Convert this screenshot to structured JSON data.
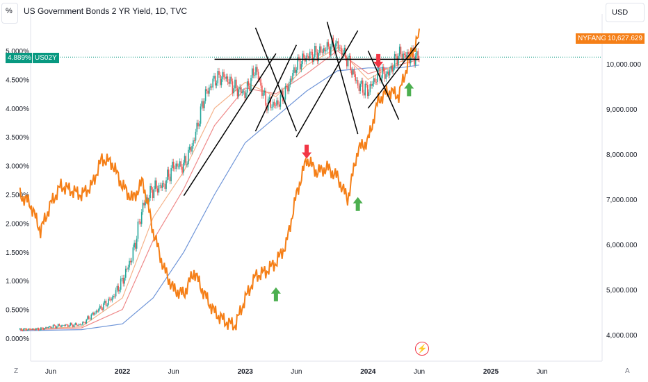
{
  "header": {
    "title": "US Government Bonds 2 YR Yield, 1D, TVC",
    "left_unit": "%",
    "currency": "USD"
  },
  "badges": {
    "yield_value": "4.889%",
    "yield_symbol": "US02Y",
    "index_symbol": "NYFANG",
    "index_value": "10,627.629"
  },
  "corners": {
    "left": "Z",
    "right": "A"
  },
  "colors": {
    "orange": "#f57f17",
    "teal": "#089981",
    "red": "#f23645",
    "green": "#4caf50",
    "blue_ma": "#6f95d8",
    "red_ma": "#ef8a8a",
    "salmon_ma": "#f5b28a",
    "candle_up": "#26a69a",
    "candle_down": "#ef5350",
    "annotation": "#000000"
  },
  "chart_data": {
    "type": "line",
    "title": "US Government Bonds 2 YR Yield, 1D, TVC",
    "x_ticks": [
      "Jun",
      "2022",
      "Jun",
      "2023",
      "Jun",
      "2024",
      "Jun",
      "2025",
      "Jun"
    ],
    "x_tick_dates": [
      "2021-06",
      "2022-01",
      "2022-06",
      "2023-01",
      "2023-06",
      "2024-01",
      "2024-06",
      "2025-01",
      "2025-06"
    ],
    "left_axis": {
      "label": "%",
      "ticks": [
        "5.000%",
        "4.500%",
        "4.000%",
        "3.500%",
        "3.000%",
        "2.500%",
        "2.000%",
        "1.500%",
        "1.000%",
        "0.500%",
        "0.000%"
      ],
      "range": [
        0,
        5
      ]
    },
    "right_axis": {
      "label": "USD",
      "ticks": [
        "10,000.000",
        "9,000.000",
        "8,000.000",
        "7,000.000",
        "6,000.000",
        "5,000.000",
        "4,000.000"
      ],
      "range": [
        4000,
        10000
      ]
    },
    "grid": false,
    "series": [
      {
        "name": "US02Y",
        "axis": "left",
        "style": "candles",
        "points": [
          [
            "2021-03",
            0.15
          ],
          [
            "2021-05",
            0.16
          ],
          [
            "2021-06",
            0.2
          ],
          [
            "2021-07",
            0.22
          ],
          [
            "2021-09",
            0.24
          ],
          [
            "2021-10",
            0.4
          ],
          [
            "2021-11",
            0.55
          ],
          [
            "2021-12",
            0.7
          ],
          [
            "2022-01",
            1.0
          ],
          [
            "2022-02",
            1.45
          ],
          [
            "2022-03",
            2.3
          ],
          [
            "2022-04",
            2.6
          ],
          [
            "2022-05",
            2.65
          ],
          [
            "2022-06",
            3.0
          ],
          [
            "2022-07",
            3.0
          ],
          [
            "2022-08",
            3.45
          ],
          [
            "2022-09",
            4.2
          ],
          [
            "2022-10",
            4.5
          ],
          [
            "2022-11",
            4.55
          ],
          [
            "2022-12",
            4.35
          ],
          [
            "2023-01",
            4.25
          ],
          [
            "2023-02",
            4.7
          ],
          [
            "2023-03",
            4.1
          ],
          [
            "2023-04",
            4.05
          ],
          [
            "2023-05",
            4.3
          ],
          [
            "2023-06",
            4.75
          ],
          [
            "2023-07",
            4.9
          ],
          [
            "2023-08",
            4.95
          ],
          [
            "2023-09",
            5.05
          ],
          [
            "2023-10",
            5.1
          ],
          [
            "2023-11",
            4.85
          ],
          [
            "2023-12",
            4.4
          ],
          [
            "2024-01",
            4.3
          ],
          [
            "2024-02",
            4.6
          ],
          [
            "2024-03",
            4.6
          ],
          [
            "2024-04",
            4.95
          ],
          [
            "2024-05",
            4.9
          ],
          [
            "2024-06",
            4.889
          ]
        ]
      },
      {
        "name": "NYFANG",
        "axis": "right",
        "style": "line",
        "points": [
          [
            "2021-03",
            7.1
          ],
          [
            "2021-04",
            6.9
          ],
          [
            "2021-05",
            6.3
          ],
          [
            "2021-06",
            6.9
          ],
          [
            "2021-07",
            7.3
          ],
          [
            "2021-08",
            7.2
          ],
          [
            "2021-09",
            7.1
          ],
          [
            "2021-10",
            7.3
          ],
          [
            "2021-11",
            7.9
          ],
          [
            "2021-12",
            7.8
          ],
          [
            "2022-01",
            7.3
          ],
          [
            "2022-02",
            7.0
          ],
          [
            "2022-03",
            7.4
          ],
          [
            "2022-04",
            6.3
          ],
          [
            "2022-05",
            5.5
          ],
          [
            "2022-06",
            5.0
          ],
          [
            "2022-07",
            4.9
          ],
          [
            "2022-08",
            5.4
          ],
          [
            "2022-09",
            4.9
          ],
          [
            "2022-10",
            4.5
          ],
          [
            "2022-11",
            4.3
          ],
          [
            "2022-12",
            4.2
          ],
          [
            "2023-01",
            4.8
          ],
          [
            "2023-02",
            5.3
          ],
          [
            "2023-03",
            5.4
          ],
          [
            "2023-04",
            5.6
          ],
          [
            "2023-05",
            6.0
          ],
          [
            "2023-06",
            7.1
          ],
          [
            "2023-07",
            7.9
          ],
          [
            "2023-08",
            7.6
          ],
          [
            "2023-09",
            7.7
          ],
          [
            "2023-10",
            7.5
          ],
          [
            "2023-11",
            7.0
          ],
          [
            "2023-12",
            8.1
          ],
          [
            "2024-01",
            8.3
          ],
          [
            "2024-02",
            9.2
          ],
          [
            "2024-03",
            9.4
          ],
          [
            "2024-04",
            9.3
          ],
          [
            "2024-05",
            10.1
          ],
          [
            "2024-06",
            10.63
          ]
        ]
      },
      {
        "name": "",
        "axis": "left",
        "style": "line",
        "color_key": "blue_ma",
        "points": [
          [
            "2021-03",
            0.13
          ],
          [
            "2021-09",
            0.15
          ],
          [
            "2022-01",
            0.25
          ],
          [
            "2022-04",
            0.7
          ],
          [
            "2022-07",
            1.5
          ],
          [
            "2022-10",
            2.5
          ],
          [
            "2023-01",
            3.4
          ],
          [
            "2023-04",
            3.85
          ],
          [
            "2023-07",
            4.3
          ],
          [
            "2023-10",
            4.65
          ],
          [
            "2024-01",
            4.7
          ],
          [
            "2024-04",
            4.7
          ],
          [
            "2024-06",
            4.75
          ]
        ]
      },
      {
        "name": "",
        "axis": "left",
        "style": "line",
        "color_key": "red_ma",
        "points": [
          [
            "2021-03",
            0.14
          ],
          [
            "2021-09",
            0.18
          ],
          [
            "2022-01",
            0.5
          ],
          [
            "2022-04",
            1.7
          ],
          [
            "2022-07",
            2.6
          ],
          [
            "2022-10",
            3.7
          ],
          [
            "2023-01",
            4.35
          ],
          [
            "2023-04",
            4.25
          ],
          [
            "2023-07",
            4.6
          ],
          [
            "2023-10",
            5.0
          ],
          [
            "2024-01",
            4.6
          ],
          [
            "2024-04",
            4.75
          ],
          [
            "2024-06",
            4.85
          ]
        ]
      },
      {
        "name": "",
        "axis": "left",
        "style": "line",
        "color_key": "salmon_ma",
        "points": [
          [
            "2021-03",
            0.15
          ],
          [
            "2021-09",
            0.2
          ],
          [
            "2022-01",
            0.7
          ],
          [
            "2022-04",
            2.1
          ],
          [
            "2022-07",
            2.9
          ],
          [
            "2022-10",
            4.0
          ],
          [
            "2023-01",
            4.45
          ],
          [
            "2023-04",
            4.2
          ],
          [
            "2023-07",
            4.75
          ],
          [
            "2023-10",
            5.05
          ],
          [
            "2024-01",
            4.5
          ],
          [
            "2024-04",
            4.8
          ],
          [
            "2024-06",
            4.9
          ]
        ]
      }
    ],
    "annotations": {
      "lines": [
        {
          "from": [
            "2022-07",
            2.48
          ],
          "to": [
            "2023-04",
            4.95
          ],
          "label": "trendline"
        },
        {
          "from": [
            "2022-10",
            4.85
          ],
          "to": [
            "2024-06",
            4.85
          ],
          "label": "horizontal"
        },
        {
          "from": [
            "2023-02",
            5.4
          ],
          "to": [
            "2023-06",
            3.6
          ],
          "label": "x1-a"
        },
        {
          "from": [
            "2023-02",
            3.6
          ],
          "to": [
            "2023-06",
            5.1
          ],
          "label": "x1-b"
        },
        {
          "from": [
            "2023-06",
            3.5
          ],
          "to": [
            "2023-12",
            5.35
          ],
          "label": "x2-a"
        },
        {
          "from": [
            "2023-09",
            5.5
          ],
          "to": [
            "2023-12",
            3.55
          ],
          "label": "x2-b"
        },
        {
          "from": [
            "2024-01",
            4.0
          ],
          "to": [
            "2024-06",
            5.15
          ],
          "label": "x3-a"
        },
        {
          "from": [
            "2024-01",
            5.0
          ],
          "to": [
            "2024-04",
            3.8
          ],
          "label": "x3-b"
        }
      ],
      "arrows": [
        {
          "date": "2023-04",
          "axis": "right",
          "value": 5.05,
          "direction": "up",
          "color_key": "green"
        },
        {
          "date": "2023-07",
          "axis": "right",
          "value": 7.9,
          "direction": "down",
          "color_key": "red"
        },
        {
          "date": "2023-12",
          "axis": "right",
          "value": 7.05,
          "direction": "up",
          "color_key": "green"
        },
        {
          "date": "2024-02",
          "axis": "left",
          "value": 4.7,
          "direction": "down",
          "color_key": "red"
        },
        {
          "date": "2024-05",
          "axis": "left",
          "value": 4.45,
          "direction": "up",
          "color_key": "green"
        }
      ]
    }
  }
}
